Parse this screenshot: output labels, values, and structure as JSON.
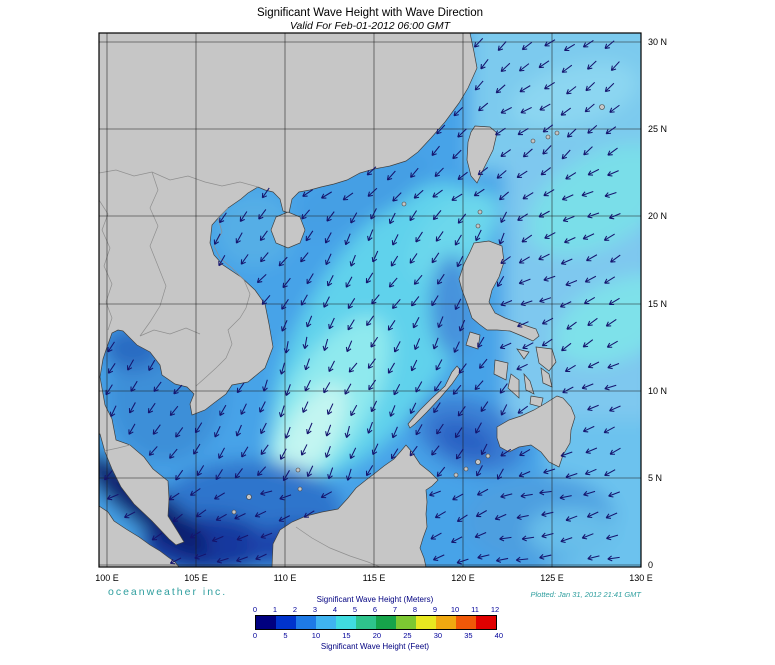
{
  "header": {
    "title": "Significant Wave Height with Wave Direction",
    "subtitle": "Valid For Feb-01-2012 06:00 GMT"
  },
  "map": {
    "lon_labels": [
      "100 E",
      "105 E",
      "110 E",
      "115 E",
      "120 E",
      "125 E",
      "130 E"
    ],
    "lat_labels": [
      "30 N",
      "25 N",
      "20 N",
      "15 N",
      "10 N",
      "5 N",
      "0"
    ],
    "land_color": "#c6c6c6",
    "coastline_color": "#404040",
    "border_color": "#8f8f8f",
    "grid_color": "#1a1a1a",
    "arrow_color": "#15156e",
    "ocean_base_color": "#46a3e8"
  },
  "footer": {
    "brand": "oceanweather inc.",
    "plotted": "Plotted: Jan 31, 2012 21:41 GMT",
    "brand_color": "#2e9e9e"
  },
  "colorbar": {
    "title_meters": "Significant Wave Height (Meters)",
    "title_feet": "Significant Wave Height (Feet)",
    "meters_ticks": [
      "0",
      "1",
      "2",
      "3",
      "4",
      "5",
      "6",
      "7",
      "8",
      "9",
      "10",
      "11",
      "12"
    ],
    "feet_ticks": [
      "0",
      "5",
      "10",
      "15",
      "20",
      "25",
      "30",
      "35",
      "40"
    ],
    "meters_range": [
      0,
      12
    ],
    "feet_range": [
      0,
      40
    ],
    "segment_colors": [
      "#000080",
      "#0033cc",
      "#1e7ae6",
      "#3fb4f0",
      "#40dce0",
      "#2ec48c",
      "#16a44a",
      "#7cc832",
      "#e8e820",
      "#f0a810",
      "#f05808",
      "#e00000"
    ]
  }
}
